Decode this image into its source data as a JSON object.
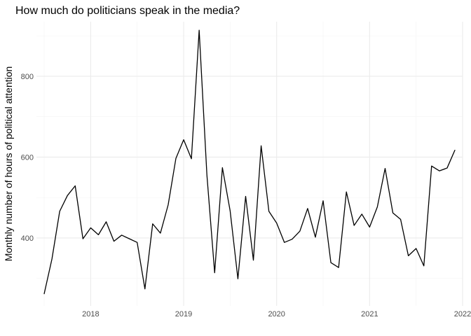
{
  "chart_data": {
    "type": "line",
    "title": "How much do politicians speak in the media?",
    "xlabel": "",
    "ylabel": "Monthly number of hours of political attention",
    "x_ticks": [
      "2018",
      "2019",
      "2020",
      "2021",
      "2022"
    ],
    "y_ticks": [
      400,
      600,
      800
    ],
    "ylim": [
      232,
      935
    ],
    "xlim": [
      "2017-06",
      "2022-01"
    ],
    "grid": true,
    "legend": "none",
    "line_color": "#000000",
    "series": [
      {
        "x": [
          "2017-07",
          "2017-08",
          "2017-09",
          "2017-10",
          "2017-11",
          "2017-12",
          "2018-01",
          "2018-02",
          "2018-03",
          "2018-04",
          "2018-05",
          "2018-06",
          "2018-07",
          "2018-08",
          "2018-09",
          "2018-10",
          "2018-11",
          "2018-12",
          "2019-01",
          "2019-02",
          "2019-03",
          "2019-04",
          "2019-05",
          "2019-06",
          "2019-07",
          "2019-08",
          "2019-09",
          "2019-10",
          "2019-11",
          "2019-12",
          "2020-01",
          "2020-02",
          "2020-03",
          "2020-04",
          "2020-05",
          "2020-06",
          "2020-07",
          "2020-08",
          "2020-09",
          "2020-10",
          "2020-11",
          "2020-12",
          "2021-01",
          "2021-02",
          "2021-03",
          "2021-04",
          "2021-05",
          "2021-06",
          "2021-07",
          "2021-08",
          "2021-09",
          "2021-10",
          "2021-11",
          "2021-12"
        ],
        "values": [
          262,
          348,
          466,
          505,
          529,
          398,
          425,
          408,
          440,
          392,
          407,
          398,
          389,
          274,
          435,
          412,
          482,
          597,
          643,
          596,
          914,
          556,
          314,
          574,
          467,
          299,
          503,
          345,
          628,
          466,
          437,
          389,
          397,
          417,
          473,
          402,
          492,
          339,
          327,
          514,
          431,
          459,
          427,
          477,
          572,
          462,
          446,
          356,
          374,
          331,
          578,
          566,
          573,
          617
        ]
      }
    ]
  }
}
